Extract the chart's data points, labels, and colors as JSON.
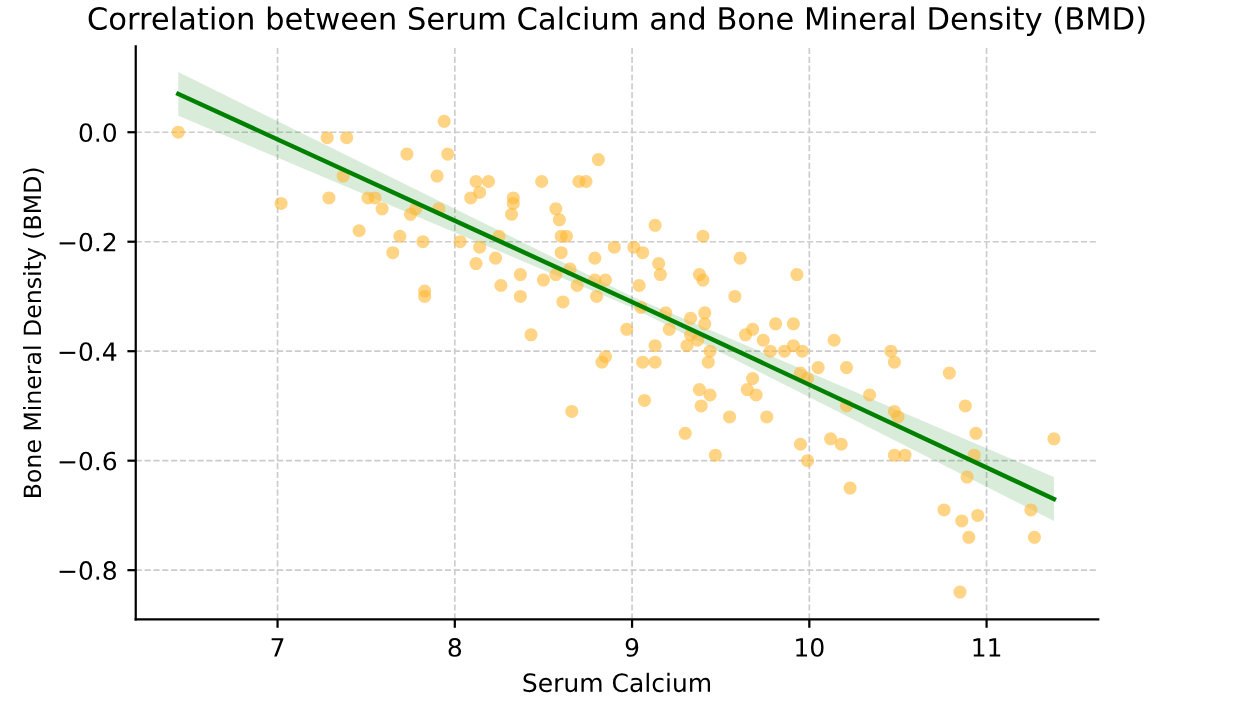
{
  "chart_data": {
    "type": "scatter",
    "title": "Correlation between Serum Calcium and Bone Mineral Density (BMD)",
    "xlabel": "Serum Calcium",
    "ylabel": "Bone Mineral Density (BMD)",
    "xlim": [
      6.2,
      11.63
    ],
    "ylim": [
      -0.89,
      0.157
    ],
    "xticks": [
      7,
      8,
      9,
      10,
      11
    ],
    "yticks": [
      {
        "value": 0.0,
        "label": "0.0"
      },
      {
        "value": -0.2,
        "label": "−0.2"
      },
      {
        "value": -0.4,
        "label": "−0.4"
      },
      {
        "value": -0.6,
        "label": "−0.6"
      },
      {
        "value": -0.8,
        "label": "−0.8"
      }
    ],
    "grid": true,
    "legend": false,
    "series": [
      {
        "color": "#ffb833",
        "marker": "circle",
        "x": [
          6.44,
          7.02,
          7.28,
          7.39,
          7.73,
          7.9,
          7.94,
          7.96,
          7.37,
          7.29,
          7.51,
          7.55,
          7.59,
          7.46,
          7.69,
          7.65,
          7.82,
          7.75,
          7.78,
          7.91,
          7.83,
          7.83,
          8.03,
          8.12,
          8.19,
          8.09,
          8.14,
          8.33,
          8.33,
          8.32,
          8.25,
          8.14,
          8.12,
          8.23,
          8.26,
          8.37,
          8.37,
          8.43,
          8.49,
          8.7,
          8.74,
          8.81,
          8.57,
          8.59,
          8.6,
          8.63,
          8.6,
          8.5,
          8.57,
          8.65,
          8.69,
          8.61,
          8.79,
          8.9,
          8.85,
          8.8,
          8.79,
          8.83,
          8.85,
          9.13,
          9.4,
          9.01,
          9.06,
          9.15,
          9.16,
          9.04,
          9.38,
          9.4,
          9.61,
          9.93,
          9.58,
          9.05,
          9.19,
          9.33,
          9.41,
          9.41,
          9.21,
          8.97,
          9.33,
          9.37,
          9.31,
          9.13,
          9.64,
          9.68,
          9.74,
          9.81,
          9.91,
          9.78,
          9.86,
          9.91,
          9.96,
          10.14,
          10.46,
          10.48,
          10.21,
          10.05,
          9.44,
          9.43,
          9.06,
          9.13,
          10.79,
          9.95,
          9.99,
          9.68,
          9.65,
          9.7,
          9.38,
          9.44,
          9.07,
          9.39,
          9.55,
          9.76,
          9.3,
          9.47,
          9.95,
          9.99,
          10.12,
          10.18,
          10.23,
          10.34,
          10.21,
          10.48,
          10.5,
          10.48,
          10.54,
          10.88,
          10.94,
          10.93,
          10.89,
          10.76,
          10.86,
          10.9,
          10.95,
          10.85,
          11.25,
          11.27,
          11.38,
          8.66
        ],
        "values": [
          0.0,
          -0.13,
          -0.01,
          -0.01,
          -0.04,
          -0.08,
          0.02,
          -0.04,
          -0.08,
          -0.12,
          -0.12,
          -0.12,
          -0.14,
          -0.18,
          -0.19,
          -0.22,
          -0.2,
          -0.15,
          -0.14,
          -0.14,
          -0.3,
          -0.29,
          -0.2,
          -0.09,
          -0.09,
          -0.12,
          -0.11,
          -0.12,
          -0.13,
          -0.15,
          -0.19,
          -0.21,
          -0.24,
          -0.23,
          -0.28,
          -0.26,
          -0.3,
          -0.37,
          -0.09,
          -0.09,
          -0.09,
          -0.05,
          -0.14,
          -0.16,
          -0.19,
          -0.19,
          -0.22,
          -0.27,
          -0.26,
          -0.25,
          -0.28,
          -0.31,
          -0.23,
          -0.21,
          -0.27,
          -0.3,
          -0.27,
          -0.42,
          -0.41,
          -0.17,
          -0.19,
          -0.21,
          -0.22,
          -0.24,
          -0.26,
          -0.28,
          -0.26,
          -0.27,
          -0.23,
          -0.26,
          -0.3,
          -0.32,
          -0.33,
          -0.34,
          -0.33,
          -0.35,
          -0.36,
          -0.36,
          -0.37,
          -0.38,
          -0.39,
          -0.39,
          -0.37,
          -0.36,
          -0.38,
          -0.35,
          -0.35,
          -0.4,
          -0.4,
          -0.39,
          -0.4,
          -0.38,
          -0.4,
          -0.42,
          -0.43,
          -0.43,
          -0.4,
          -0.42,
          -0.42,
          -0.42,
          -0.44,
          -0.44,
          -0.45,
          -0.45,
          -0.47,
          -0.48,
          -0.47,
          -0.48,
          -0.49,
          -0.5,
          -0.52,
          -0.52,
          -0.55,
          -0.59,
          -0.57,
          -0.6,
          -0.56,
          -0.57,
          -0.65,
          -0.48,
          -0.5,
          -0.51,
          -0.52,
          -0.59,
          -0.59,
          -0.5,
          -0.55,
          -0.59,
          -0.63,
          -0.69,
          -0.71,
          -0.74,
          -0.7,
          -0.84,
          -0.69,
          -0.74,
          -0.56,
          -0.51
        ]
      },
      {
        "type": "line",
        "color": "#008000",
        "line_style": "solid",
        "marker": "none",
        "x": [
          6.44,
          9.0,
          11.38
        ],
        "values": [
          0.07,
          -0.31,
          -0.67
        ],
        "lower": [
          0.03,
          -0.32,
          -0.71
        ],
        "upper": [
          0.11,
          -0.3,
          -0.63
        ]
      }
    ]
  }
}
